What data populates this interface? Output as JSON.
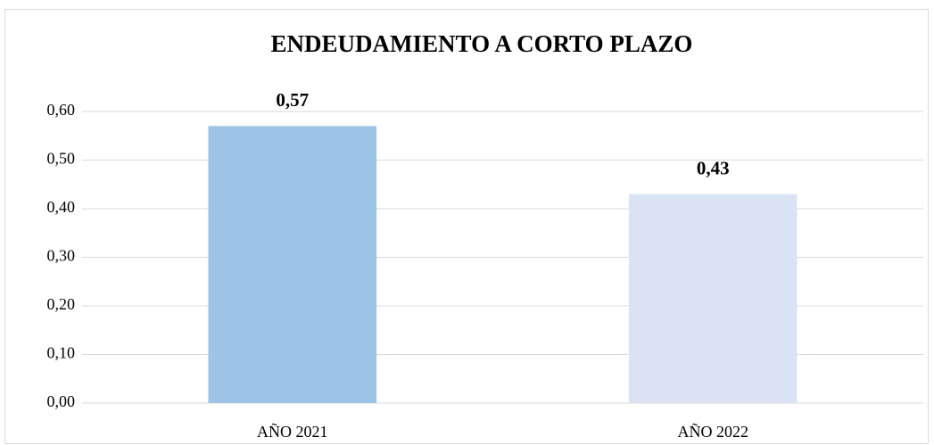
{
  "chart_data": {
    "type": "bar",
    "title": "ENDEUDAMIENTO A CORTO PLAZO",
    "categories": [
      "AÑO 2021",
      "AÑO 2022"
    ],
    "values": [
      0.57,
      0.43
    ],
    "value_labels": [
      "0,57",
      "0,43"
    ],
    "colors": [
      "#9dc3e6",
      "#dae3f3"
    ],
    "ylim": [
      0,
      0.6
    ],
    "yticks": [
      {
        "value": 0,
        "label": "0,00"
      },
      {
        "value": 0.1,
        "label": "0,10"
      },
      {
        "value": 0.2,
        "label": "0,20"
      },
      {
        "value": 0.3,
        "label": "0,30"
      },
      {
        "value": 0.4,
        "label": "0,40"
      },
      {
        "value": 0.5,
        "label": "0,50"
      },
      {
        "value": 0.6,
        "label": "0,60"
      }
    ],
    "grid": true
  }
}
